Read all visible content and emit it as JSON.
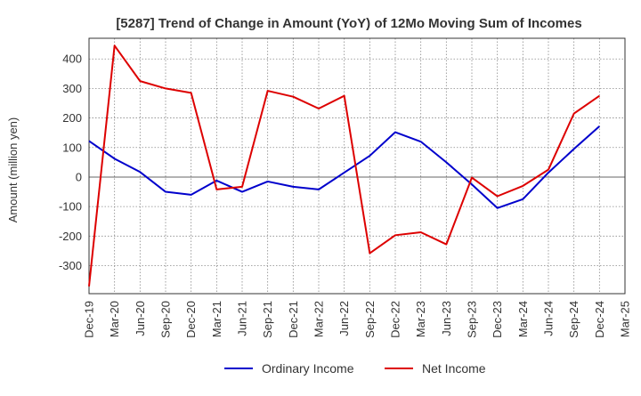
{
  "chart_data": {
    "type": "line",
    "title": "[5287]  Trend of Change in Amount (YoY) of 12Mo Moving Sum of Incomes",
    "xlabel": "",
    "ylabel": "Amount (million yen)",
    "x": [
      "Dec-19",
      "Mar-20",
      "Jun-20",
      "Sep-20",
      "Dec-20",
      "Mar-21",
      "Jun-21",
      "Sep-21",
      "Dec-21",
      "Mar-22",
      "Jun-22",
      "Sep-22",
      "Dec-22",
      "Mar-23",
      "Jun-23",
      "Sep-23",
      "Dec-23",
      "Mar-24",
      "Jun-24",
      "Sep-24",
      "Dec-24",
      "Mar-25"
    ],
    "yticks": [
      -300,
      -200,
      -100,
      0,
      100,
      200,
      300,
      400
    ],
    "ylim": [
      -395,
      470
    ],
    "grid": true,
    "legend_position": "bottom",
    "series": [
      {
        "name": "Ordinary Income",
        "color": "#0000cc",
        "values": [
          122,
          62,
          17,
          -50,
          -60,
          -12,
          -50,
          -15,
          -33,
          -42,
          15,
          72,
          152,
          120,
          50,
          -25,
          -105,
          -75,
          15,
          95,
          172,
          null
        ]
      },
      {
        "name": "Net Income",
        "color": "#dd0000",
        "values": [
          -370,
          445,
          325,
          300,
          285,
          -42,
          -33,
          292,
          272,
          232,
          275,
          -258,
          -197,
          -187,
          -228,
          -2,
          -65,
          -30,
          25,
          215,
          275,
          null
        ]
      }
    ]
  }
}
